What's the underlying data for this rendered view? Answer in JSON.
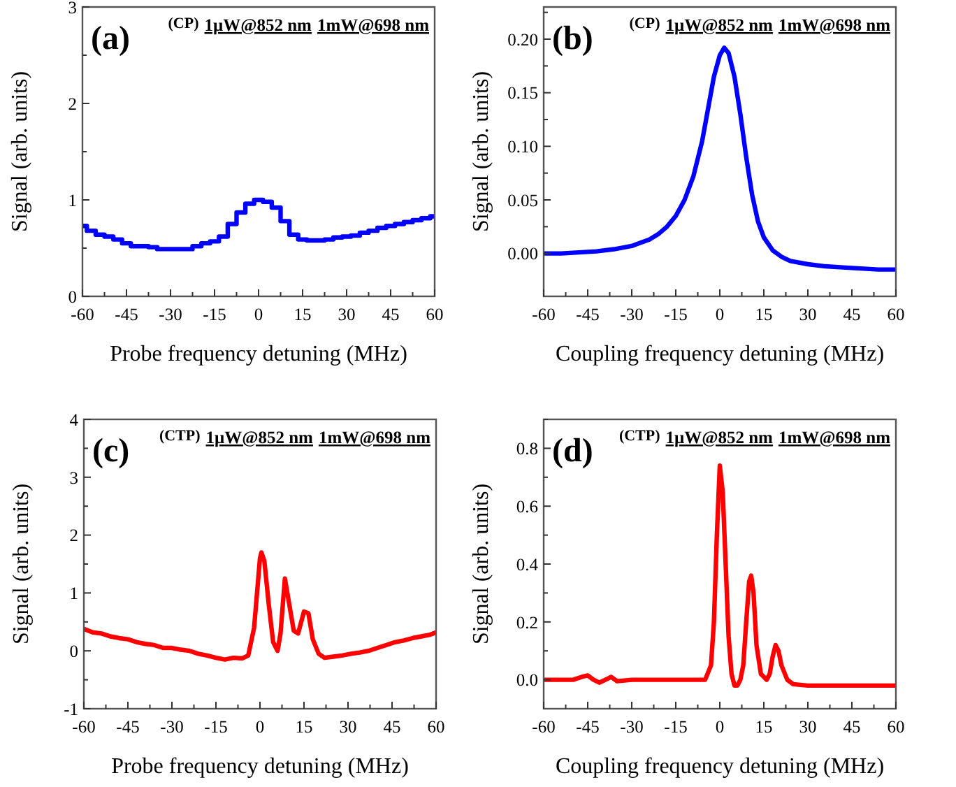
{
  "chart_data": [
    {
      "type": "step",
      "title": "(a)",
      "annotations": [
        "(CP)",
        "1μW@852 nm",
        "1mW@698 nm"
      ],
      "xlabel": "Probe frequency detuning (MHz)",
      "ylabel": "Signal (arb. units)",
      "xlim": [
        -60,
        60
      ],
      "xticks": [
        -60,
        -45,
        -30,
        -15,
        0,
        15,
        30,
        45,
        60
      ],
      "ylim": [
        0,
        3
      ],
      "yticks": [
        0,
        1,
        2,
        3
      ],
      "line_style": "solid",
      "series": [
        {
          "color": "#0000ff",
          "x": [
            -60,
            -57,
            -54,
            -51,
            -48,
            -45,
            -42,
            -39,
            -36,
            -33,
            -30,
            -27,
            -24,
            -21,
            -18,
            -15,
            -12,
            -9,
            -6,
            -3,
            0,
            3,
            6,
            9,
            12,
            15,
            18,
            21,
            24,
            27,
            30,
            33,
            36,
            39,
            42,
            45,
            48,
            51,
            54,
            57,
            60
          ],
          "values": [
            0.73,
            0.68,
            0.64,
            0.62,
            0.59,
            0.55,
            0.52,
            0.52,
            0.51,
            0.49,
            0.49,
            0.49,
            0.49,
            0.52,
            0.55,
            0.57,
            0.62,
            0.75,
            0.87,
            0.96,
            1.0,
            0.98,
            0.92,
            0.78,
            0.64,
            0.59,
            0.58,
            0.58,
            0.59,
            0.61,
            0.62,
            0.63,
            0.66,
            0.68,
            0.71,
            0.73,
            0.75,
            0.77,
            0.79,
            0.81,
            0.83
          ]
        }
      ]
    },
    {
      "type": "line",
      "title": "(b)",
      "annotations": [
        "(CP)",
        "1μW@852 nm",
        "1mW@698 nm"
      ],
      "xlabel": "Coupling frequency detuning (MHz)",
      "ylabel": "Signal (arb. units)",
      "xlim": [
        -60,
        60
      ],
      "xticks": [
        -60,
        -45,
        -30,
        -15,
        0,
        15,
        30,
        45,
        60
      ],
      "ylim": [
        -0.04,
        0.23
      ],
      "yticks": [
        {
          "value": 0,
          "label": "0.00"
        },
        {
          "value": 0.05,
          "label": "0.05"
        },
        {
          "value": 0.1,
          "label": "0.10"
        },
        {
          "value": 0.15,
          "label": "0.15"
        },
        {
          "value": 0.2,
          "label": "0.20"
        }
      ],
      "line_style": "solid",
      "series": [
        {
          "color": "#0000ff",
          "x": [
            -60,
            -54,
            -48,
            -42,
            -36,
            -30,
            -27,
            -24,
            -21,
            -18,
            -15,
            -12,
            -9,
            -6,
            -4,
            -2,
            0,
            1.5,
            3,
            5,
            7,
            9,
            11,
            13,
            15,
            18,
            21,
            24,
            30,
            36,
            42,
            48,
            54,
            60
          ],
          "values": [
            0.0,
            0.0,
            0.001,
            0.002,
            0.004,
            0.007,
            0.01,
            0.013,
            0.018,
            0.025,
            0.035,
            0.05,
            0.072,
            0.105,
            0.135,
            0.165,
            0.185,
            0.192,
            0.187,
            0.165,
            0.13,
            0.09,
            0.055,
            0.03,
            0.015,
            0.003,
            -0.003,
            -0.007,
            -0.01,
            -0.012,
            -0.013,
            -0.014,
            -0.015,
            -0.015
          ]
        }
      ]
    },
    {
      "type": "line",
      "title": "(c)",
      "annotations": [
        "(CTP)",
        "1μW@852 nm",
        "1mW@698 nm"
      ],
      "xlabel": "Probe frequency detuning (MHz)",
      "ylabel": "Signal (arb. units)",
      "xlim": [
        -60,
        60
      ],
      "xticks": [
        -60,
        -45,
        -30,
        -15,
        0,
        15,
        30,
        45,
        60
      ],
      "ylim": [
        -1,
        4
      ],
      "yticks": [
        -1,
        0,
        1,
        2,
        3,
        4
      ],
      "line_style": "solid",
      "series": [
        {
          "color": "#ff0000",
          "x": [
            -60,
            -57,
            -54,
            -51,
            -48,
            -45,
            -42,
            -39,
            -36,
            -33,
            -30,
            -27,
            -24,
            -21,
            -18,
            -15,
            -12,
            -9,
            -6,
            -4,
            -2,
            -1,
            0,
            0.5,
            1.5,
            3,
            4.5,
            6,
            7,
            8.5,
            10,
            11.5,
            13,
            15,
            16.5,
            18,
            20,
            22,
            25,
            28,
            31,
            34,
            37,
            40,
            43,
            46,
            49,
            52,
            55,
            58,
            60
          ],
          "values": [
            0.38,
            0.32,
            0.3,
            0.25,
            0.22,
            0.2,
            0.15,
            0.12,
            0.1,
            0.05,
            0.05,
            0.02,
            0.0,
            -0.05,
            -0.08,
            -0.12,
            -0.15,
            -0.12,
            -0.13,
            -0.08,
            0.4,
            1.0,
            1.6,
            1.7,
            1.55,
            0.8,
            0.15,
            0.0,
            0.3,
            1.25,
            0.8,
            0.35,
            0.3,
            0.68,
            0.65,
            0.2,
            -0.05,
            -0.12,
            -0.1,
            -0.08,
            -0.05,
            -0.03,
            0.0,
            0.05,
            0.1,
            0.15,
            0.18,
            0.22,
            0.25,
            0.28,
            0.32
          ]
        }
      ]
    },
    {
      "type": "line",
      "title": "(d)",
      "annotations": [
        "(CTP)",
        "1μW@852 nm",
        "1mW@698 nm"
      ],
      "xlabel": "Coupling frequency detuning (MHz)",
      "ylabel": "Signal (arb. units)",
      "xlim": [
        -60,
        60
      ],
      "xticks": [
        -60,
        -45,
        -30,
        -15,
        0,
        15,
        30,
        45,
        60
      ],
      "ylim": [
        -0.1,
        0.9
      ],
      "yticks": [
        {
          "value": 0,
          "label": "0.0"
        },
        {
          "value": 0.2,
          "label": "0.2"
        },
        {
          "value": 0.4,
          "label": "0.4"
        },
        {
          "value": 0.6,
          "label": "0.6"
        },
        {
          "value": 0.8,
          "label": "0.8"
        }
      ],
      "line_style": "solid",
      "series": [
        {
          "color": "#ff0000",
          "x": [
            -60,
            -50,
            -47,
            -45,
            -43,
            -41,
            -38,
            -37,
            -35,
            -30,
            -10,
            -5,
            -3,
            -2,
            -1,
            0,
            1,
            2,
            3,
            4,
            5,
            6,
            7,
            8,
            9,
            10,
            10.7,
            11.5,
            12.5,
            14,
            16,
            17,
            18,
            19,
            20,
            21,
            23,
            25,
            30,
            45,
            60
          ],
          "values": [
            0,
            0,
            0.01,
            0.015,
            0.0,
            -0.01,
            0.005,
            0.01,
            -0.005,
            0,
            0,
            0,
            0.05,
            0.2,
            0.5,
            0.74,
            0.65,
            0.4,
            0.15,
            0.02,
            -0.02,
            -0.02,
            0.0,
            0.05,
            0.2,
            0.34,
            0.36,
            0.3,
            0.12,
            0.02,
            0.0,
            0.02,
            0.08,
            0.12,
            0.1,
            0.05,
            0.0,
            -0.015,
            -0.02,
            -0.02,
            -0.02
          ]
        }
      ]
    }
  ]
}
